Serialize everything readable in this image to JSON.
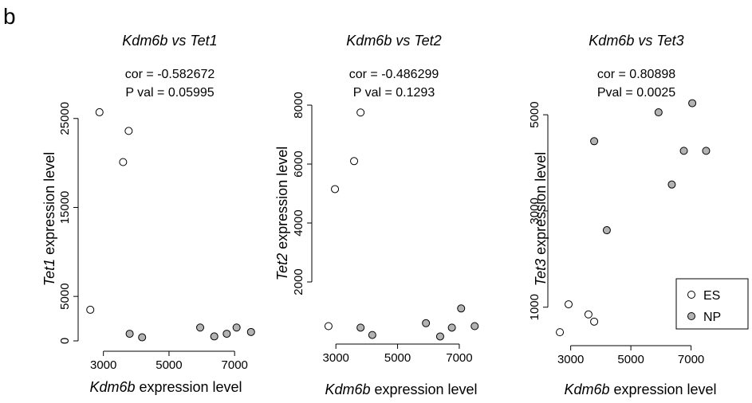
{
  "panel_label": "b",
  "legend": {
    "items": [
      {
        "label": "ES",
        "fill": "#ffffff"
      },
      {
        "label": "NP",
        "fill": "#b3b3b3"
      }
    ]
  },
  "chart_data": [
    {
      "type": "scatter",
      "title": "Kdm6b vs Tet1",
      "stats": [
        "cor = -0.582672",
        "P val =  0.05995"
      ],
      "xlabel_gene": "Kdm6b",
      "xlabel_rest": " expression level",
      "ylabel_gene": "Tet1",
      "ylabel_rest": " expression level",
      "xlim": [
        2400,
        7700
      ],
      "ylim": [
        0,
        26500
      ],
      "xticks": [
        3000,
        5000,
        7000
      ],
      "xtick_labels": [
        "3000",
        "5000",
        "7000"
      ],
      "yticks": [
        0,
        5000,
        15000,
        25000
      ],
      "ytick_labels": [
        "0",
        "5000",
        "15000",
        "25000"
      ],
      "series": [
        {
          "name": "ES",
          "points": [
            [
              2600,
              3500
            ],
            [
              2880,
              25700
            ],
            [
              3600,
              20100
            ],
            [
              3770,
              23600
            ]
          ]
        },
        {
          "name": "NP",
          "points": [
            [
              3800,
              800
            ],
            [
              4180,
              400
            ],
            [
              5950,
              1500
            ],
            [
              6380,
              500
            ],
            [
              6760,
              800
            ],
            [
              7060,
              1500
            ],
            [
              7500,
              1000
            ]
          ]
        }
      ]
    },
    {
      "type": "scatter",
      "title": "Kdm6b vs Tet2",
      "stats": [
        "cor = -0.486299",
        "P val = 0.1293"
      ],
      "xlabel_gene": "Kdm6b",
      "xlabel_rest": " expression level",
      "ylabel_gene": "Tet2",
      "ylabel_rest": " expression level",
      "xlim": [
        2400,
        7700
      ],
      "ylim": [
        0,
        8000
      ],
      "xticks": [
        3000,
        5000,
        7000
      ],
      "xtick_labels": [
        "3000",
        "5000",
        "7000"
      ],
      "yticks": [
        2000,
        4000,
        6000,
        8000
      ],
      "ytick_labels": [
        "2000",
        "4000",
        "6000",
        "8000"
      ],
      "series": [
        {
          "name": "ES",
          "points": [
            [
              2760,
              500
            ],
            [
              2970,
              5150
            ],
            [
              3590,
              6100
            ],
            [
              3800,
              7750
            ]
          ]
        },
        {
          "name": "NP",
          "points": [
            [
              3800,
              450
            ],
            [
              4180,
              200
            ],
            [
              5920,
              600
            ],
            [
              6380,
              150
            ],
            [
              6760,
              450
            ],
            [
              7060,
              1100
            ],
            [
              7500,
              500
            ]
          ]
        }
      ]
    },
    {
      "type": "scatter",
      "title": "Kdm6b vs Tet3",
      "stats": [
        "cor = 0.80898",
        "Pval = 0.0025"
      ],
      "xlabel_gene": "Kdm6b",
      "xlabel_rest": " expression level",
      "ylabel_gene": "Tet3",
      "ylabel_rest": " expression level",
      "xlim": [
        2400,
        7700
      ],
      "ylim": [
        300,
        5200
      ],
      "xticks": [
        3000,
        5000,
        7000
      ],
      "xtick_labels": [
        "3000",
        "5000",
        "7000"
      ],
      "yticks": [
        1000,
        3000,
        5000
      ],
      "ytick_labels": [
        "1000",
        "3000",
        "5000"
      ],
      "series": [
        {
          "name": "ES",
          "points": [
            [
              2640,
              480
            ],
            [
              2930,
              1060
            ],
            [
              3590,
              850
            ],
            [
              3780,
              700
            ]
          ]
        },
        {
          "name": "NP",
          "points": [
            [
              3780,
              4450
            ],
            [
              4200,
              2600
            ],
            [
              5920,
              5050
            ],
            [
              6360,
              3550
            ],
            [
              6760,
              4250
            ],
            [
              7040,
              5240
            ],
            [
              7500,
              4250
            ]
          ]
        }
      ]
    }
  ]
}
